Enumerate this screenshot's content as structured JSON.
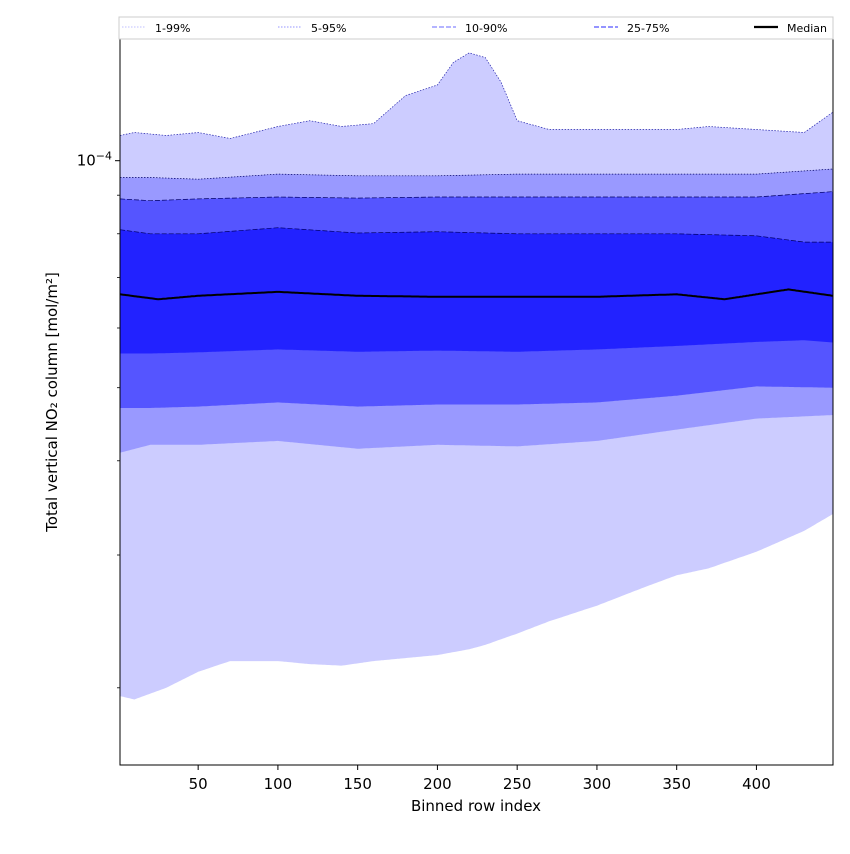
{
  "chart_data": {
    "type": "area",
    "xlabel": "Binned row index",
    "ylabel": "Total vertical NO₂ column [mol/m²]",
    "x_range": [
      1,
      448
    ],
    "xlim": [
      1,
      448
    ],
    "ylim": [
      1.58e-05,
      0.000145
    ],
    "yscale": "log",
    "x_ticks": [
      50,
      100,
      150,
      200,
      250,
      300,
      350,
      400
    ],
    "x_tick_labels": [
      "50",
      "100",
      "150",
      "200",
      "250",
      "300",
      "350",
      "400"
    ],
    "y_major_ticks": [
      0.0001
    ],
    "y_major_tick_labels": [
      "10−4"
    ],
    "y_minor_ticks": [
      2e-05,
      3e-05,
      4e-05,
      5e-05,
      6e-05,
      7e-05,
      8e-05,
      9e-05
    ],
    "legend_position": "top",
    "legend": [
      {
        "label": "1-99%",
        "style": "dotted",
        "color": "#ccccff"
      },
      {
        "label": "5-95%",
        "style": "dotted",
        "color": "#aaaaff"
      },
      {
        "label": "10-90%",
        "style": "dashed",
        "color": "#8888ff"
      },
      {
        "label": "25-75%",
        "style": "dashed",
        "color": "#5555ff"
      },
      {
        "label": "Median",
        "style": "solid",
        "color": "#000000"
      }
    ],
    "bands": [
      {
        "name": "1-99%",
        "fill": "#ccccff",
        "x": [
          1,
          10,
          30,
          50,
          70,
          100,
          120,
          140,
          160,
          180,
          200,
          210,
          220,
          230,
          240,
          250,
          270,
          300,
          330,
          350,
          370,
          400,
          430,
          448
        ],
        "lower": [
          1.95e-05,
          1.93e-05,
          2e-05,
          2.1e-05,
          2.17e-05,
          2.17e-05,
          2.15e-05,
          2.14e-05,
          2.17e-05,
          2.19e-05,
          2.21e-05,
          2.23e-05,
          2.25e-05,
          2.28e-05,
          2.32e-05,
          2.36e-05,
          2.45e-05,
          2.57e-05,
          2.72e-05,
          2.82e-05,
          2.88e-05,
          3.03e-05,
          3.23e-05,
          3.4e-05
        ],
        "upper": [
          0.000108,
          0.000109,
          0.000108,
          0.000109,
          0.000107,
          0.000111,
          0.000113,
          0.000111,
          0.000112,
          0.000122,
          0.000126,
          0.000135,
          0.000139,
          0.000137,
          0.000127,
          0.000113,
          0.00011,
          0.00011,
          0.00011,
          0.00011,
          0.000111,
          0.00011,
          0.000109,
          0.000116
        ]
      },
      {
        "name": "5-95%",
        "fill": "#9999ff",
        "x": [
          1,
          20,
          50,
          100,
          150,
          200,
          250,
          300,
          350,
          400,
          448
        ],
        "lower": [
          4.1e-05,
          4.2e-05,
          4.2e-05,
          4.25e-05,
          4.15e-05,
          4.2e-05,
          4.18e-05,
          4.25e-05,
          4.4e-05,
          4.55e-05,
          4.6e-05
        ],
        "upper": [
          9.5e-05,
          9.5e-05,
          9.45e-05,
          9.6e-05,
          9.55e-05,
          9.55e-05,
          9.6e-05,
          9.6e-05,
          9.6e-05,
          9.6e-05,
          9.75e-05
        ]
      },
      {
        "name": "10-90%",
        "fill": "#5555ff",
        "x": [
          1,
          20,
          50,
          100,
          150,
          200,
          250,
          300,
          350,
          400,
          448
        ],
        "lower": [
          4.7e-05,
          4.7e-05,
          4.72e-05,
          4.78e-05,
          4.72e-05,
          4.75e-05,
          4.75e-05,
          4.78e-05,
          4.88e-05,
          5.02e-05,
          5e-05
        ],
        "upper": [
          8.9e-05,
          8.85e-05,
          8.9e-05,
          8.95e-05,
          8.92e-05,
          8.95e-05,
          8.95e-05,
          8.95e-05,
          8.95e-05,
          8.95e-05,
          9.1e-05
        ]
      },
      {
        "name": "25-75%",
        "fill": "#2222ff",
        "x": [
          1,
          20,
          50,
          100,
          150,
          200,
          250,
          300,
          350,
          400,
          430,
          448
        ],
        "lower": [
          5.55e-05,
          5.55e-05,
          5.57e-05,
          5.62e-05,
          5.58e-05,
          5.6e-05,
          5.58e-05,
          5.62e-05,
          5.68e-05,
          5.75e-05,
          5.78e-05,
          5.74e-05
        ],
        "upper": [
          8.1e-05,
          8e-05,
          8e-05,
          8.15e-05,
          8.02e-05,
          8.05e-05,
          8e-05,
          8e-05,
          8e-05,
          7.95e-05,
          7.8e-05,
          7.8e-05
        ]
      }
    ],
    "series": [
      {
        "name": "Median",
        "color": "#000000",
        "x": [
          1,
          25,
          50,
          100,
          150,
          200,
          250,
          300,
          350,
          380,
          420,
          448
        ],
        "y": [
          6.65e-05,
          6.55e-05,
          6.62e-05,
          6.7e-05,
          6.62e-05,
          6.6e-05,
          6.6e-05,
          6.6e-05,
          6.65e-05,
          6.55e-05,
          6.75e-05,
          6.62e-05
        ]
      }
    ]
  }
}
